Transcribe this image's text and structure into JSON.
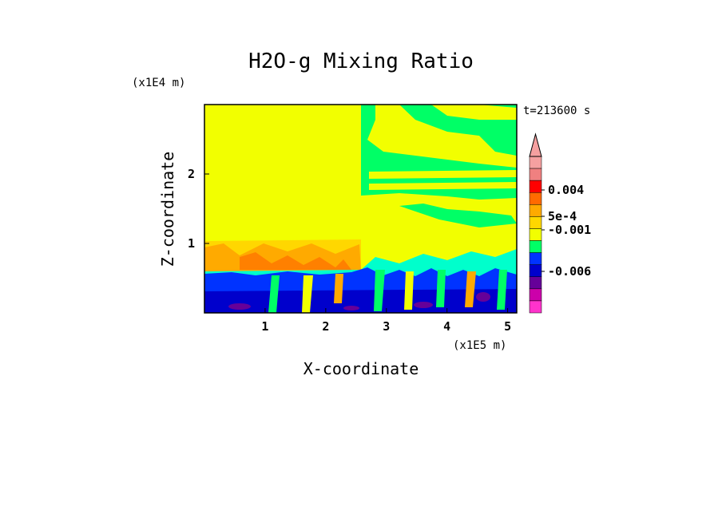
{
  "chart_data": {
    "type": "heatmap",
    "title": "H2O-g Mixing Ratio",
    "xlabel": "X-coordinate",
    "ylabel": "Z-coordinate",
    "x_unit": "(x1E5 m)",
    "y_unit": "(x1E4 m)",
    "time_label": "t=213600 s",
    "xlim": [
      0,
      5.15
    ],
    "ylim": [
      0,
      3.0
    ],
    "x_ticks": [
      "1",
      "2",
      "3",
      "4",
      "5"
    ],
    "x_tick_values": [
      1,
      2,
      3,
      4,
      5
    ],
    "y_ticks": [
      "1",
      "2"
    ],
    "y_tick_values": [
      1,
      2
    ],
    "colorbar": {
      "labels": [
        "0.004",
        "5e-4",
        "-0.001",
        "-0.006"
      ],
      "colors": [
        "#f5a0a0",
        "#f08080",
        "#ff0000",
        "#ff6a00",
        "#ffaa00",
        "#ffd700",
        "#f2ff00",
        "#00ff66",
        "#0033ff",
        "#0000cc",
        "#660099",
        "#cc00aa",
        "#ff33cc"
      ],
      "extend": "max"
    },
    "regions": [
      {
        "name": "yellow-background",
        "color": "#f2ff00"
      },
      {
        "name": "upper-right-green",
        "color": "#00ff66"
      },
      {
        "name": "orange-band",
        "color": "#ffaa00"
      },
      {
        "name": "lower-blue-turbulent",
        "color": "#0033ff"
      }
    ]
  }
}
